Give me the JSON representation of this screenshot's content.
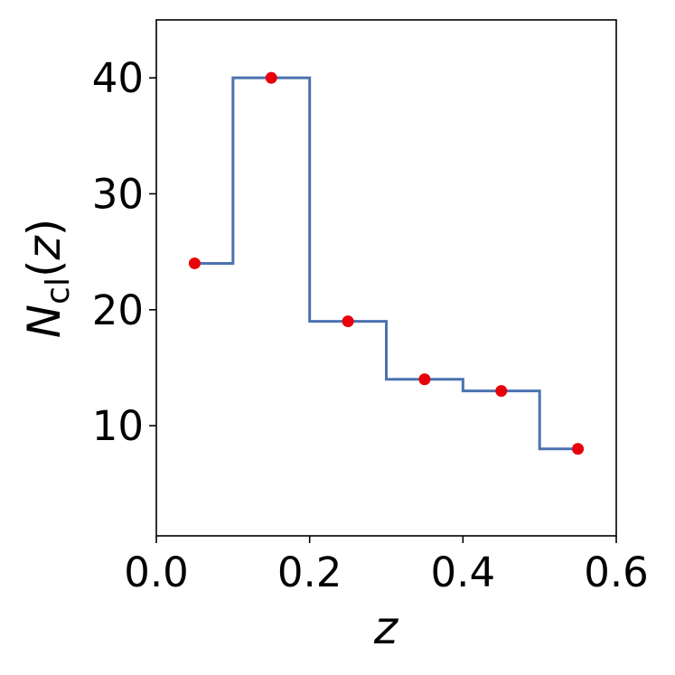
{
  "chart_data": {
    "type": "line",
    "style": "step",
    "title": "",
    "xlabel": "z",
    "ylabel": {
      "main": "N",
      "subscript": "cl",
      "paren_open": "(",
      "arg": "z",
      "paren_close": ")"
    },
    "xlim": [
      0.0,
      0.6
    ],
    "ylim": [
      0.5,
      45.0
    ],
    "xticks": [
      "0.0",
      "0.2",
      "0.4",
      "0.6"
    ],
    "xtick_values": [
      0.0,
      0.2,
      0.4,
      0.6
    ],
    "yticks": [
      "10",
      "20",
      "30",
      "40"
    ],
    "ytick_values": [
      10,
      20,
      30,
      40
    ],
    "grid": false,
    "step_series": {
      "color": "#4c72b0",
      "bin_edges": [
        0.05,
        0.1,
        0.2,
        0.3,
        0.4,
        0.5,
        0.55
      ],
      "values": [
        24,
        40,
        19,
        14,
        13,
        8
      ]
    },
    "points": {
      "color": "#e8000b",
      "x": [
        0.05,
        0.15,
        0.25,
        0.35,
        0.45,
        0.55
      ],
      "y": [
        24,
        40,
        19,
        14,
        13,
        8
      ]
    }
  }
}
